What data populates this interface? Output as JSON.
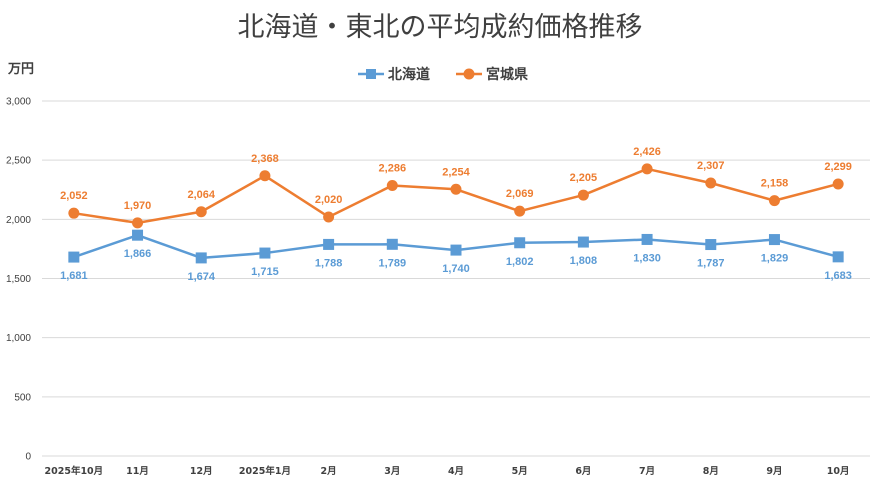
{
  "chart_data": {
    "type": "line",
    "title": "北海道・東北の平均成約価格推移",
    "ylabel": "万円",
    "xlabel": "",
    "ylim": [
      0,
      3000
    ],
    "yticks": [
      0,
      500,
      1000,
      1500,
      2000,
      2500,
      3000
    ],
    "ytick_labels": [
      "0",
      "500",
      "1,000",
      "1,500",
      "2,000",
      "2,500",
      "3,000"
    ],
    "categories": [
      "2025年10月",
      "11月",
      "12月",
      "2025年1月",
      "2月",
      "3月",
      "4月",
      "5月",
      "6月",
      "7月",
      "8月",
      "9月",
      "10月"
    ],
    "legend_position": "top-center",
    "grid": true,
    "series": [
      {
        "name": "北海道",
        "color": "#5B9BD5",
        "marker": "square",
        "label_position": "below",
        "values": [
          1681,
          1866,
          1674,
          1715,
          1788,
          1789,
          1740,
          1802,
          1808,
          1830,
          1787,
          1829,
          1683
        ],
        "labels": [
          "1,681",
          "1,866",
          "1,674",
          "1,715",
          "1,788",
          "1,789",
          "1,740",
          "1,802",
          "1,808",
          "1,830",
          "1,787",
          "1,829",
          "1,683"
        ]
      },
      {
        "name": "宮城県",
        "color": "#ED7D31",
        "marker": "circle",
        "label_position": "above",
        "values": [
          2052,
          1970,
          2064,
          2368,
          2020,
          2286,
          2254,
          2069,
          2205,
          2426,
          2307,
          2158,
          2299
        ],
        "labels": [
          "2,052",
          "1,970",
          "2,064",
          "2,368",
          "2,020",
          "2,286",
          "2,254",
          "2,069",
          "2,205",
          "2,426",
          "2,307",
          "2,158",
          "2,299"
        ]
      }
    ]
  }
}
